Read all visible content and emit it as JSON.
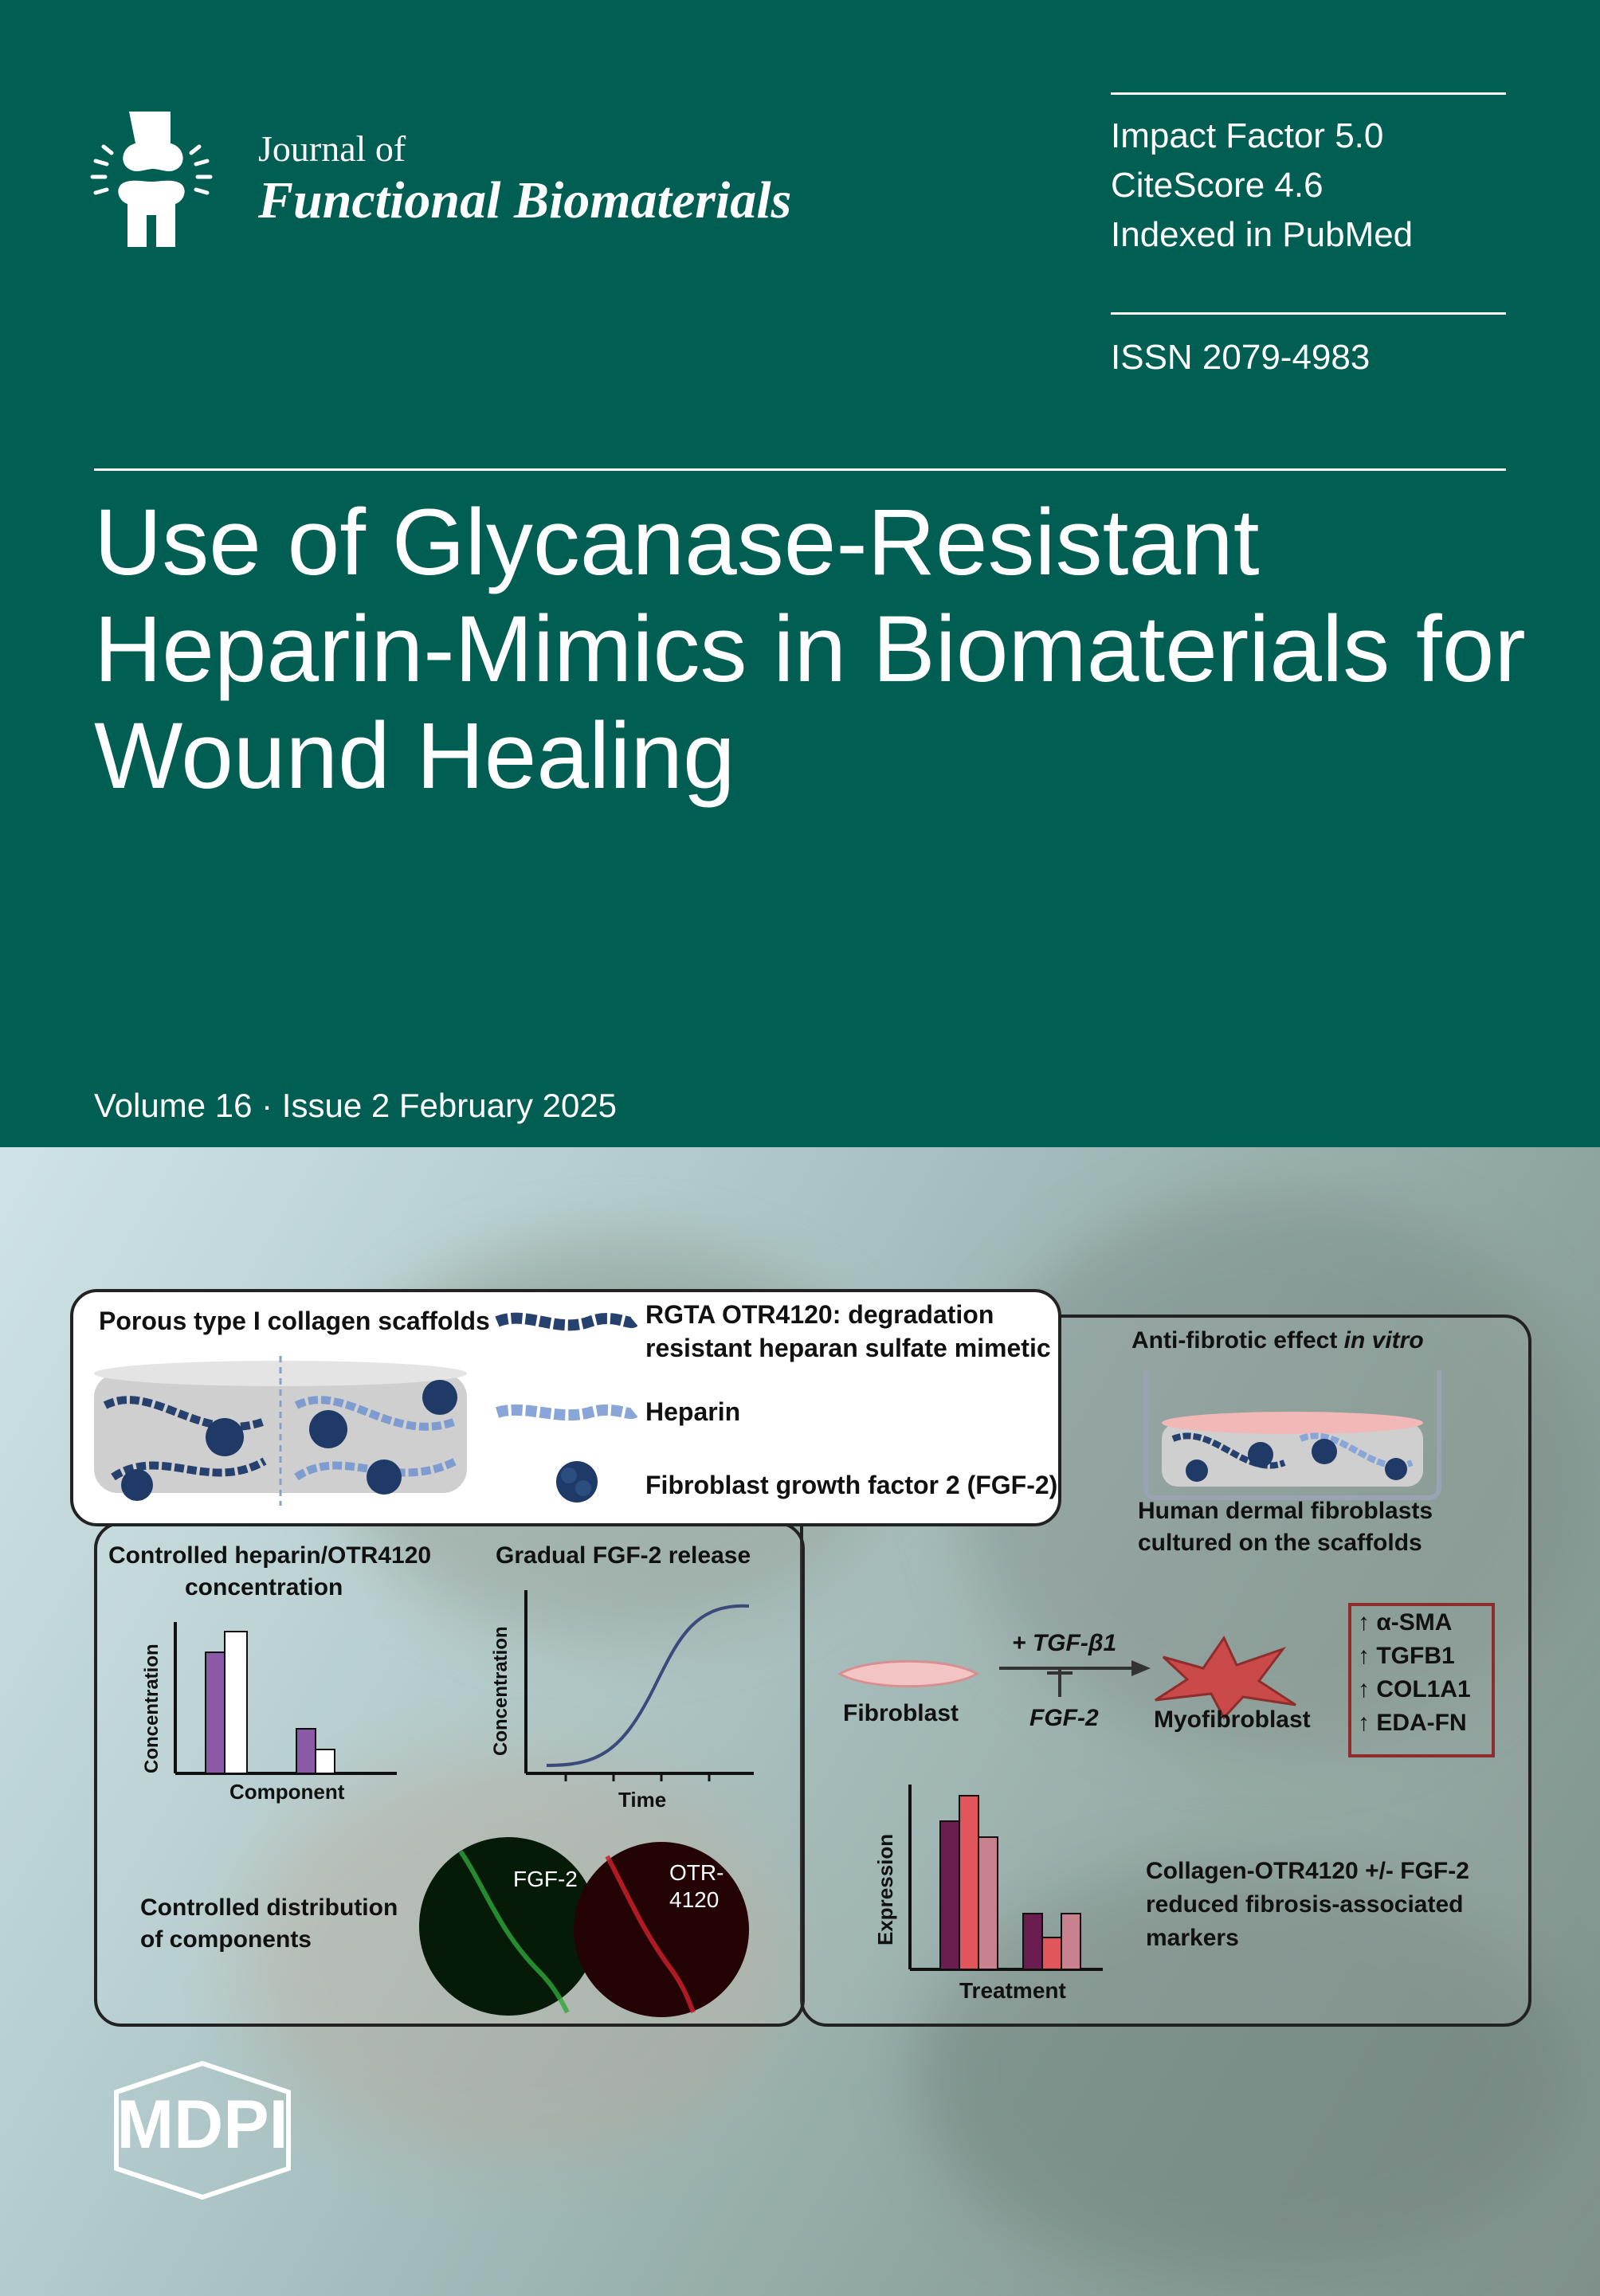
{
  "journal": {
    "prefix": "Journal of",
    "name": "Functional Biomaterials",
    "logo_icon": "knee-joint-logo"
  },
  "metrics": {
    "impact_factor": "Impact Factor 5.0",
    "citescore": "CiteScore 4.6",
    "indexed": "Indexed in PubMed",
    "issn": "ISSN 2079-4983"
  },
  "article_title": "Use of Glycanase-Resistant Heparin-Mimics in Biomaterials for Wound Healing",
  "issue": "Volume 16 · Issue 2 February 2025",
  "publisher": "MDPI",
  "colors": {
    "brand_green": "#005e52",
    "purple": "#8a5aa6",
    "dark_purple": "#6b1d4f",
    "red": "#e0565a",
    "pink": "#c98190",
    "collagen_blue": "#27416e"
  },
  "figure": {
    "scaffold_title": "Porous type I collagen scaffolds",
    "legend": {
      "otr_line1": "RGTA OTR4120: degradation",
      "otr_line2": "resistant heparan sulfate mimetic",
      "heparin": "Heparin",
      "fgf2": "Fibroblast growth factor 2 (FGF-2)"
    },
    "left_panel": {
      "conc_title_line1": "Controlled heparin/OTR4120",
      "conc_title_line2": "concentration",
      "bar_ylabel": "Concentration",
      "bar_xlabel": "Component",
      "release_title": "Gradual FGF-2 release",
      "release_ylabel": "Concentration",
      "release_xlabel": "Time",
      "dist_line1": "Controlled distribution",
      "dist_line2": "of components",
      "fgf2_label": "FGF-2",
      "otr_label_line1": "OTR-",
      "otr_label_line2": "4120"
    },
    "right_panel": {
      "antifib_title": "Anti-fibrotic effect",
      "antifib_title_italic": "in vitro",
      "cells_line1": "Human dermal fibroblasts",
      "cells_line2": "cultured on the scaffolds",
      "fibroblast": "Fibroblast",
      "tgf": "+ TGF-β1",
      "fgf2_inhibit": "FGF-2",
      "myofibroblast": "Myofibroblast",
      "markers": [
        "↑ α-SMA",
        "↑ TGFB1",
        "↑ COL1A1",
        "↑ EDA-FN"
      ],
      "expr_ylabel": "Expression",
      "expr_xlabel": "Treatment",
      "result_line1": "Collagen-OTR4120 +/- FGF-2",
      "result_line2": "reduced fibrosis-associated",
      "result_line3": "markers"
    }
  }
}
